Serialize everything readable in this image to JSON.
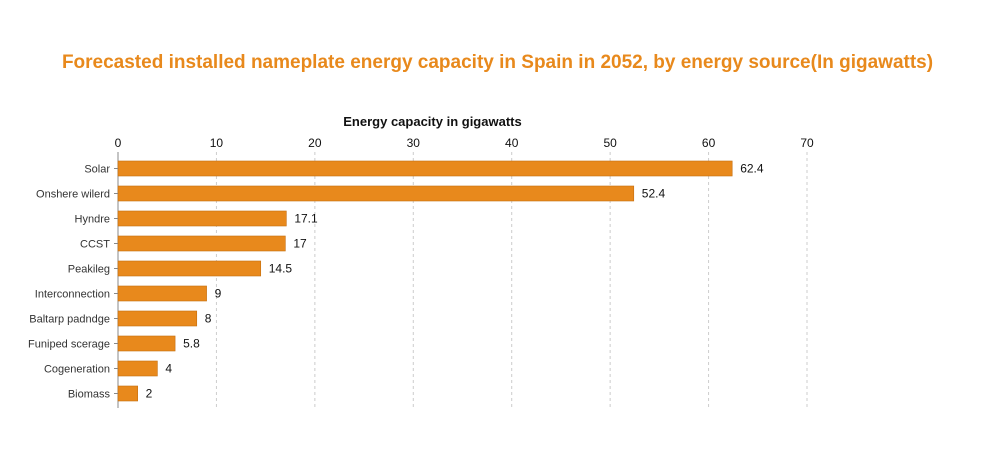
{
  "chart_data": {
    "type": "bar",
    "orientation": "horizontal",
    "title": "Forecasted installed nameplate energy capacity in Spain in 2052, by energy source(In gigawatts)",
    "xlabel": "Energy capacity in gigawatts",
    "ylabel": "",
    "xlim": [
      0,
      70
    ],
    "xticks": [
      0,
      10,
      20,
      30,
      40,
      50,
      60,
      70
    ],
    "categories": [
      "Solar",
      "Onshere wilerd",
      "Hyndre",
      "CCST",
      "Peakileg",
      "Interconnection",
      "Baltarp padndge",
      "Funiped scerage",
      "Cogeneration",
      "Biomass"
    ],
    "values": [
      62.4,
      52.4,
      17.1,
      17,
      14.5,
      9,
      8,
      5.8,
      4,
      2
    ],
    "value_labels": [
      "62.4",
      "52.4",
      "17.1",
      "17",
      "14.5",
      "9",
      "8",
      "5.8",
      "4",
      "2"
    ],
    "grid": "vertical dashed",
    "colors": {
      "bar": "#e8891c",
      "bar_edge": "#c46e10",
      "title": "#e8891c",
      "grid": "#cccccc"
    }
  }
}
